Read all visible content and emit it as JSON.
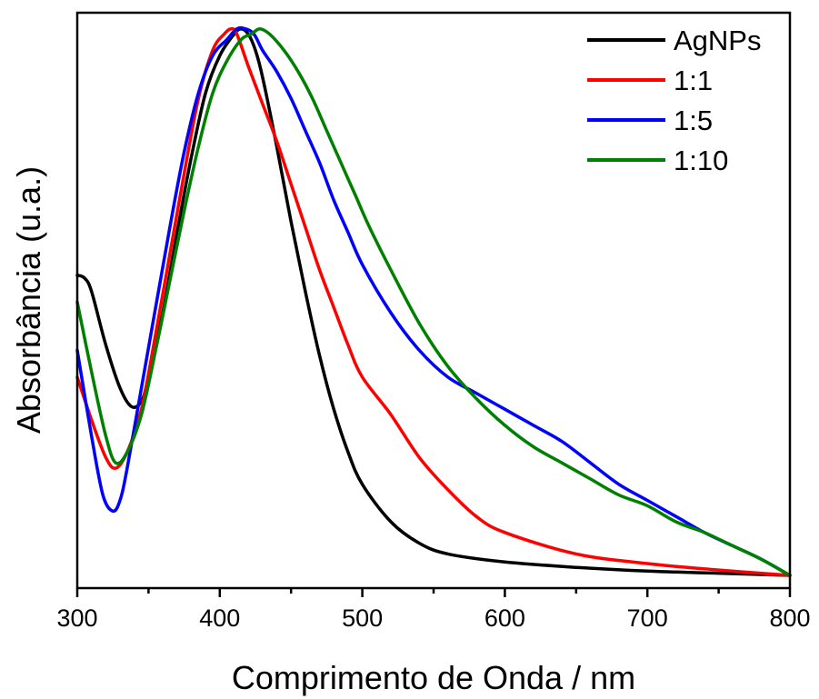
{
  "chart_data": {
    "type": "line",
    "xlabel": "Comprimento de Onda / nm",
    "ylabel": "Absorbância (u.a.)",
    "xlim": [
      300,
      800
    ],
    "ylim": [
      0,
      1.05
    ],
    "xticks": [
      300,
      400,
      500,
      600,
      700,
      800
    ],
    "yticks": [],
    "grid": false,
    "legend_position": "top-right",
    "series": [
      {
        "name": "AgNPs",
        "color": "#000000",
        "x": [
          300,
          305,
          310,
          320,
          330,
          338,
          345,
          350,
          360,
          370,
          380,
          390,
          400,
          410,
          415,
          420,
          425,
          430,
          440,
          450,
          460,
          470,
          480,
          490,
          500,
          520,
          540,
          560,
          600,
          650,
          700,
          750,
          800
        ],
        "y": [
          0.56,
          0.555,
          0.53,
          0.43,
          0.35,
          0.315,
          0.325,
          0.37,
          0.49,
          0.64,
          0.78,
          0.9,
          0.97,
          1.01,
          1.02,
          1.01,
          0.98,
          0.93,
          0.8,
          0.66,
          0.53,
          0.41,
          0.31,
          0.23,
          0.17,
          0.1,
          0.06,
          0.04,
          0.025,
          0.015,
          0.008,
          0.004,
          0.0
        ]
      },
      {
        "name": "1:1",
        "color": "#ff0000",
        "x": [
          300,
          310,
          320,
          327,
          335,
          345,
          355,
          365,
          375,
          385,
          395,
          403,
          408,
          412,
          420,
          430,
          440,
          450,
          460,
          470,
          480,
          490,
          500,
          520,
          540,
          560,
          580,
          600,
          650,
          700,
          750,
          800
        ],
        "y": [
          0.37,
          0.29,
          0.22,
          0.2,
          0.23,
          0.31,
          0.45,
          0.6,
          0.75,
          0.89,
          0.98,
          1.01,
          1.02,
          1.01,
          0.95,
          0.88,
          0.81,
          0.73,
          0.65,
          0.57,
          0.5,
          0.43,
          0.37,
          0.3,
          0.22,
          0.16,
          0.11,
          0.08,
          0.04,
          0.022,
          0.01,
          0.0
        ]
      },
      {
        "name": "1:5",
        "color": "#0000ff",
        "x": [
          300,
          310,
          318,
          325,
          330,
          335,
          345,
          355,
          365,
          375,
          385,
          395,
          405,
          412,
          418,
          424,
          430,
          440,
          450,
          460,
          470,
          480,
          490,
          500,
          520,
          540,
          560,
          580,
          600,
          620,
          640,
          660,
          680,
          700,
          720,
          740,
          760,
          780,
          800
        ],
        "y": [
          0.42,
          0.26,
          0.15,
          0.12,
          0.14,
          0.2,
          0.35,
          0.5,
          0.65,
          0.79,
          0.9,
          0.97,
          1.0,
          1.02,
          1.02,
          1.01,
          0.98,
          0.94,
          0.89,
          0.83,
          0.77,
          0.7,
          0.64,
          0.58,
          0.49,
          0.42,
          0.37,
          0.34,
          0.31,
          0.28,
          0.25,
          0.21,
          0.17,
          0.14,
          0.11,
          0.08,
          0.055,
          0.03,
          0.0
        ]
      },
      {
        "name": "1:10",
        "color": "#008000",
        "x": [
          300,
          310,
          320,
          327,
          335,
          345,
          355,
          365,
          375,
          385,
          395,
          405,
          415,
          422,
          428,
          435,
          445,
          455,
          465,
          475,
          485,
          495,
          505,
          520,
          540,
          560,
          580,
          600,
          620,
          640,
          660,
          680,
          700,
          720,
          740,
          760,
          780,
          800
        ],
        "y": [
          0.51,
          0.38,
          0.26,
          0.21,
          0.23,
          0.3,
          0.42,
          0.55,
          0.68,
          0.8,
          0.9,
          0.96,
          1.0,
          1.01,
          1.02,
          1.01,
          0.98,
          0.94,
          0.89,
          0.83,
          0.77,
          0.71,
          0.65,
          0.57,
          0.47,
          0.39,
          0.33,
          0.28,
          0.24,
          0.21,
          0.18,
          0.15,
          0.13,
          0.1,
          0.08,
          0.055,
          0.03,
          0.0
        ]
      }
    ]
  }
}
